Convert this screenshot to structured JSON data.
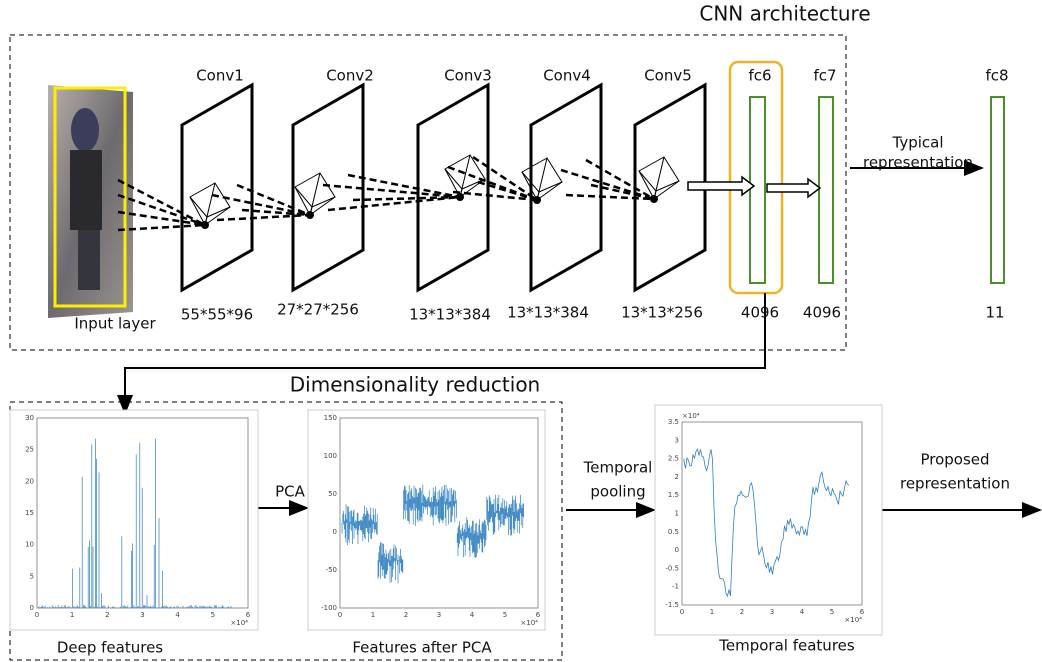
{
  "title": "CNN architecture",
  "input": "Input layer",
  "layers": [
    {
      "name": "Conv1",
      "size": "55*55*96"
    },
    {
      "name": "Conv2",
      "size": "27*27*256"
    },
    {
      "name": "Conv3",
      "size": "13*13*384"
    },
    {
      "name": "Conv4",
      "size": "13*13*384"
    },
    {
      "name": "Conv5",
      "size": "13*13*256"
    },
    {
      "name": "fc6",
      "size": "4096"
    },
    {
      "name": "fc7",
      "size": "4096"
    },
    {
      "name": "fc8",
      "size": "11"
    }
  ],
  "typical": [
    "Typical",
    "representation"
  ],
  "reduction": "Dimensionality reduction",
  "pca": "PCA",
  "pooling": [
    "Temporal",
    "pooling"
  ],
  "proposed": [
    "Proposed",
    "representation"
  ],
  "plots": [
    {
      "caption": "Deep features",
      "yticks": [
        "0",
        "5",
        "10",
        "15",
        "20",
        "25",
        "30"
      ],
      "xticks": [
        "0",
        "1",
        "2",
        "3",
        "4",
        "5",
        "6"
      ],
      "xscale": "×10⁴"
    },
    {
      "caption": "Features after PCA",
      "yticks": [
        "-100",
        "-50",
        "0",
        "50",
        "100",
        "150"
      ],
      "xticks": [
        "0",
        "1",
        "2",
        "3",
        "4",
        "5",
        "6"
      ],
      "xscale": "×10⁴"
    },
    {
      "caption": "Temporal features",
      "ytop": "×10⁴",
      "yticks": [
        "-1.5",
        "-1",
        "-0.5",
        "0",
        "0.5",
        "1",
        "1.5",
        "2",
        "2.5",
        "3",
        "3.5"
      ],
      "xticks": [
        "0",
        "1",
        "2",
        "3",
        "4",
        "5",
        "6"
      ],
      "xscale": "×10⁴"
    }
  ]
}
